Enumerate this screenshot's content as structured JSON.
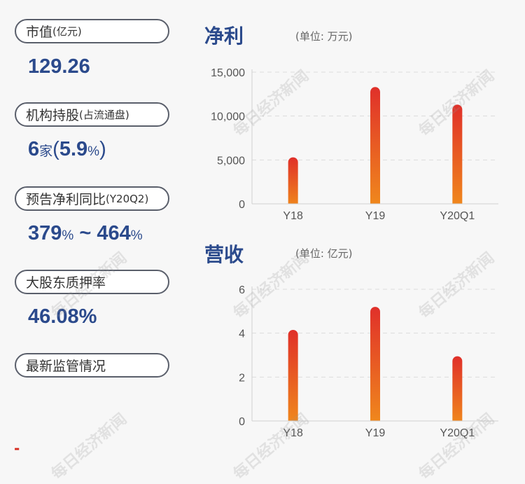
{
  "left_panel": {
    "market_cap": {
      "label": "市值",
      "label_unit": "(亿元)",
      "value": "129.26"
    },
    "institutions": {
      "label": "机构持股",
      "label_sub": "(占流通盘)",
      "count": "6",
      "count_unit": "家",
      "pct_open": "(",
      "pct": "5.9",
      "pct_unit": "%",
      "pct_close": ")"
    },
    "forecast": {
      "label": "预告净利同比",
      "label_sub": "(Y20Q2)",
      "low": "379",
      "low_unit": "%",
      "sep": " ~ ",
      "high": "464",
      "high_unit": "%"
    },
    "pledge": {
      "label": "大股东质押率",
      "value": "46.08%"
    },
    "supervision": {
      "label": "最新监管情况"
    },
    "dash": "-"
  },
  "watermark": "每日经济新闻",
  "colors": {
    "accent": "#2b4a8c",
    "bar_top": "#e0302a",
    "bar_bottom": "#f08a1c",
    "alert": "#d62b1f"
  },
  "chart_data": [
    {
      "type": "bar",
      "title": "净利",
      "unit_label": "(单位: 万元)",
      "categories": [
        "Y18",
        "Y19",
        "Y20Q1"
      ],
      "values": [
        5300,
        13300,
        11300
      ],
      "ylim": [
        0,
        15000
      ],
      "yticks": [
        0,
        5000,
        10000,
        15000
      ],
      "ytick_labels": [
        "0",
        "5,000",
        "10,000",
        "15,000"
      ],
      "grid": true
    },
    {
      "type": "bar",
      "title": "营收",
      "unit_label": "(单位: 亿元)",
      "categories": [
        "Y18",
        "Y19",
        "Y20Q1"
      ],
      "values": [
        4.15,
        5.2,
        2.95
      ],
      "ylim": [
        0,
        6
      ],
      "yticks": [
        0,
        2,
        4,
        6
      ],
      "ytick_labels": [
        "0",
        "2",
        "4",
        "6"
      ],
      "grid": true
    }
  ]
}
